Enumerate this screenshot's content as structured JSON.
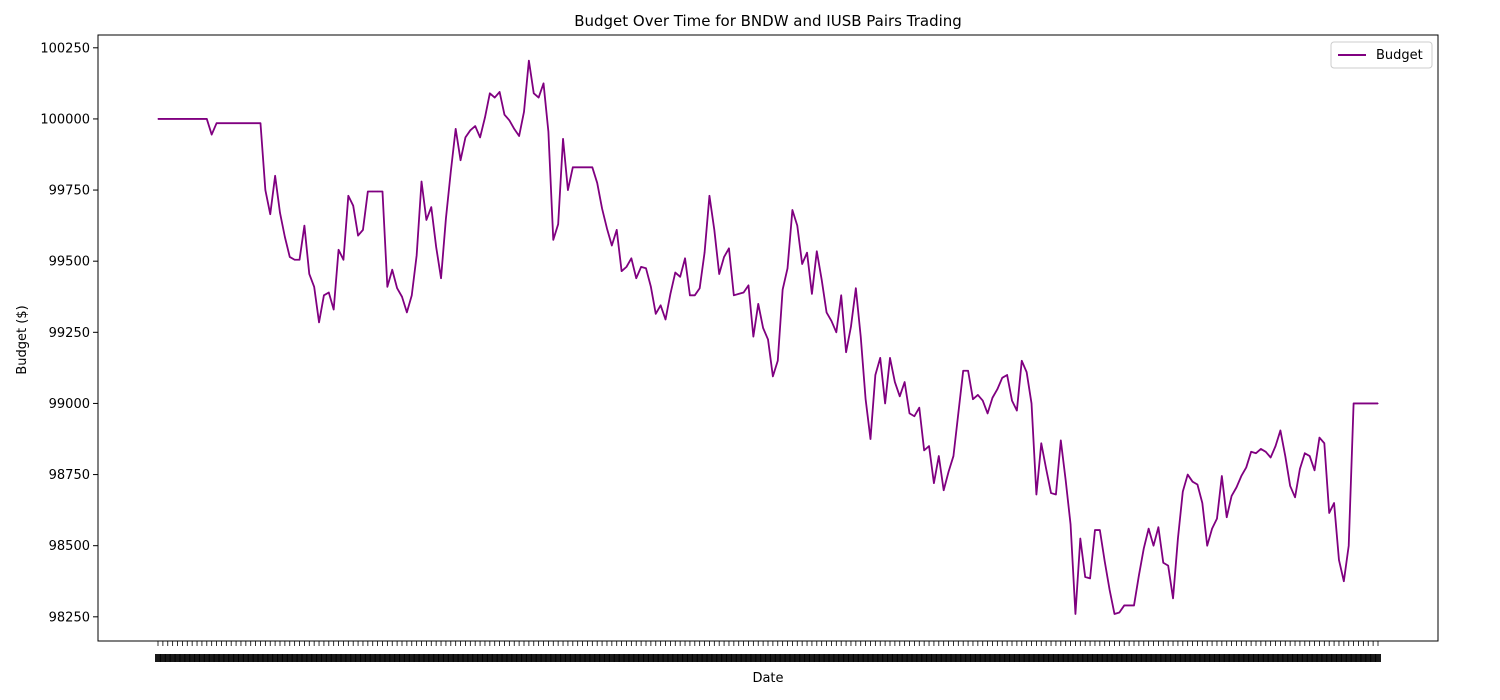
{
  "chart_data": {
    "type": "line",
    "title": "Budget Over Time for BNDW and IUSB Pairs Trading",
    "xlabel": "Date",
    "ylabel": "Budget ($)",
    "ylim": [
      98165,
      100295
    ],
    "yticks": [
      98250,
      98500,
      98750,
      99000,
      99250,
      99500,
      99750,
      100000,
      100250
    ],
    "x_ticklabels_note": "",
    "legend": {
      "position": "upper-right"
    },
    "grid": false,
    "series": [
      {
        "name": "Budget",
        "color": "#800080",
        "values": [
          100000,
          100000,
          100000,
          100000,
          100000,
          100000,
          100000,
          100000,
          100000,
          100000,
          100000,
          99945,
          99985,
          99985,
          99985,
          99985,
          99985,
          99985,
          99985,
          99985,
          99985,
          99985,
          99750,
          99665,
          99800,
          99670,
          99585,
          99515,
          99505,
          99505,
          99625,
          99455,
          99410,
          99285,
          99380,
          99390,
          99330,
          99540,
          99505,
          99730,
          99695,
          99590,
          99610,
          99745,
          99745,
          99745,
          99745,
          99410,
          99470,
          99405,
          99375,
          99320,
          99380,
          99520,
          99780,
          99645,
          99690,
          99550,
          99440,
          99650,
          99815,
          99965,
          99855,
          99935,
          99960,
          99975,
          99935,
          100005,
          100090,
          100075,
          100095,
          100015,
          99995,
          99965,
          99940,
          100025,
          100205,
          100090,
          100075,
          100125,
          99955,
          99575,
          99630,
          99930,
          99750,
          99830,
          99830,
          99830,
          99830,
          99830,
          99775,
          99685,
          99615,
          99555,
          99610,
          99465,
          99480,
          99510,
          99440,
          99480,
          99475,
          99410,
          99315,
          99345,
          99295,
          99385,
          99460,
          99445,
          99510,
          99380,
          99380,
          99405,
          99530,
          99730,
          99610,
          99455,
          99515,
          99545,
          99380,
          99385,
          99390,
          99415,
          99235,
          99350,
          99265,
          99225,
          99095,
          99150,
          99400,
          99475,
          99680,
          99625,
          99490,
          99530,
          99385,
          99535,
          99435,
          99320,
          99290,
          99250,
          99380,
          99180,
          99270,
          99405,
          99235,
          99015,
          98875,
          99100,
          99160,
          99000,
          99160,
          99075,
          99025,
          99075,
          98965,
          98955,
          98985,
          98835,
          98850,
          98720,
          98815,
          98695,
          98760,
          98815,
          98965,
          99115,
          99115,
          99015,
          99030,
          99010,
          98965,
          99020,
          99050,
          99090,
          99100,
          99010,
          98975,
          99150,
          99110,
          99000,
          98680,
          98860,
          98770,
          98685,
          98680,
          98870,
          98730,
          98575,
          98260,
          98525,
          98390,
          98385,
          98555,
          98555,
          98445,
          98345,
          98260,
          98265,
          98290,
          98290,
          98290,
          98395,
          98490,
          98560,
          98500,
          98565,
          98440,
          98430,
          98315,
          98525,
          98690,
          98750,
          98725,
          98715,
          98650,
          98500,
          98560,
          98595,
          98745,
          98600,
          98675,
          98705,
          98745,
          98775,
          98830,
          98825,
          98840,
          98830,
          98810,
          98850,
          98905,
          98815,
          98710,
          98670,
          98770,
          98825,
          98815,
          98765,
          98880,
          98860,
          98615,
          98650,
          98450,
          98375,
          98500,
          99000,
          99000,
          99000,
          99000,
          99000,
          99000
        ]
      }
    ]
  }
}
